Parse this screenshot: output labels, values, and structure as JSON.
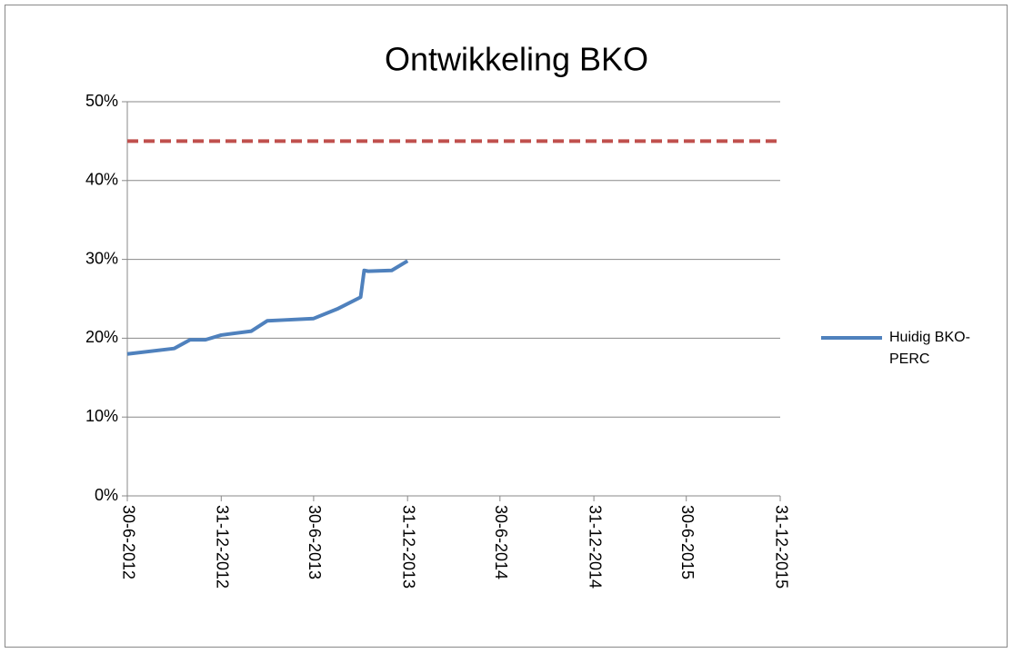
{
  "chart_data": {
    "type": "line",
    "title": "Ontwikkeling BKO",
    "x": [
      "30-6-2012",
      "30-9-2012",
      "31-10-2012",
      "30-11-2012",
      "31-12-2012",
      "28-2-2013",
      "31-3-2013",
      "30-4-2013",
      "30-6-2013",
      "15-8-2013",
      "30-9-2013",
      "7-10-2013",
      "15-10-2013",
      "30-11-2013",
      "31-12-2013"
    ],
    "series": [
      {
        "name": "Huidig BKO-PERC",
        "color": "#4f81bd",
        "values": [
          18.0,
          18.7,
          19.8,
          19.8,
          20.4,
          20.9,
          22.2,
          22.3,
          22.5,
          23.7,
          25.2,
          28.6,
          28.5,
          28.6,
          29.8
        ]
      }
    ],
    "reference_line": {
      "value": 45,
      "color": "#c0504d",
      "dashed": true
    },
    "xlim": [
      "30-6-2012",
      "31-12-2015"
    ],
    "xticks": [
      "30-6-2012",
      "31-12-2012",
      "30-6-2013",
      "31-12-2013",
      "30-6-2014",
      "31-12-2014",
      "30-6-2015",
      "31-12-2015"
    ],
    "ylim": [
      0,
      50
    ],
    "yticks": [
      {
        "value": 0,
        "label": "0%"
      },
      {
        "value": 10,
        "label": "10%"
      },
      {
        "value": 20,
        "label": "20%"
      },
      {
        "value": 30,
        "label": "30%"
      },
      {
        "value": 40,
        "label": "40%"
      },
      {
        "value": 50,
        "label": "50%"
      }
    ],
    "grid": true,
    "legend": "right"
  }
}
